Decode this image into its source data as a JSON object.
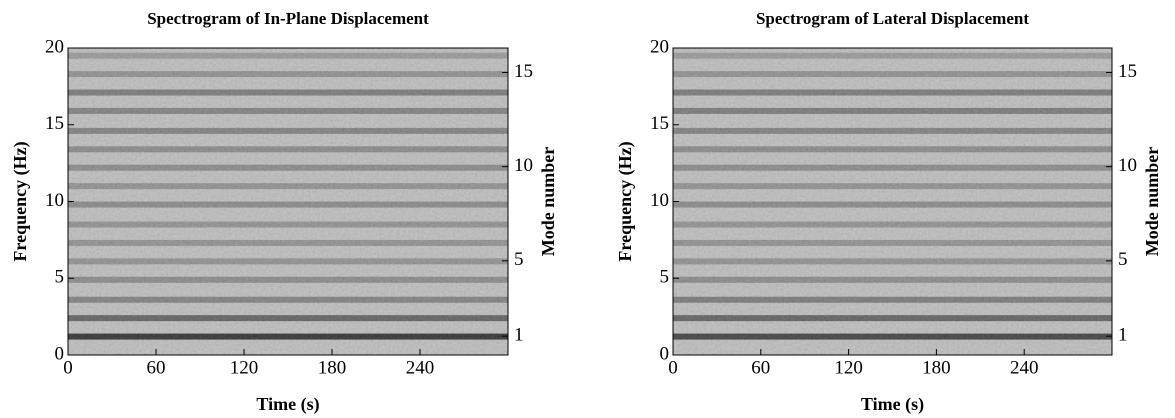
{
  "chart_data": [
    {
      "type": "heatmap",
      "title": "Spectrogram of In-Plane Displacement",
      "xlabel": "Time (s)",
      "ylabel": "Frequency (Hz)",
      "y2label": "Mode number",
      "xlim": [
        0,
        300
      ],
      "xticks": [
        0,
        60,
        120,
        180,
        240
      ],
      "ylim": [
        0,
        20
      ],
      "yticks": [
        0,
        5,
        10,
        15,
        20
      ],
      "y2lim": [
        0,
        16.3
      ],
      "y2ticks": [
        1,
        5,
        10,
        15
      ],
      "band_frequencies": [
        1.2,
        2.4,
        3.6,
        4.9,
        6.1,
        7.3,
        8.5,
        9.8,
        11.0,
        12.2,
        13.4,
        14.6,
        15.9,
        17.1,
        18.3,
        19.5
      ],
      "band_levels": [
        0.9,
        0.6,
        0.4,
        0.35,
        0.3,
        0.3,
        0.3,
        0.35,
        0.3,
        0.35,
        0.35,
        0.4,
        0.4,
        0.45,
        0.3,
        0.25
      ]
    },
    {
      "type": "heatmap",
      "title": "Spectrogram of Lateral Displacement",
      "xlabel": "Time (s)",
      "ylabel": "Frequency (Hz)",
      "y2label": "Mode number",
      "xlim": [
        0,
        300
      ],
      "xticks": [
        0,
        60,
        120,
        180,
        240
      ],
      "ylim": [
        0,
        20
      ],
      "yticks": [
        0,
        5,
        10,
        15,
        20
      ],
      "y2lim": [
        0,
        16.3
      ],
      "y2ticks": [
        1,
        5,
        10,
        15
      ],
      "band_frequencies": [
        1.2,
        2.4,
        3.6,
        4.9,
        6.1,
        7.3,
        8.5,
        9.8,
        11.0,
        12.2,
        13.4,
        14.6,
        15.9,
        17.1,
        18.3,
        19.5
      ],
      "band_levels": [
        0.8,
        0.6,
        0.45,
        0.35,
        0.3,
        0.3,
        0.3,
        0.35,
        0.3,
        0.35,
        0.35,
        0.4,
        0.45,
        0.45,
        0.3,
        0.25
      ]
    }
  ]
}
